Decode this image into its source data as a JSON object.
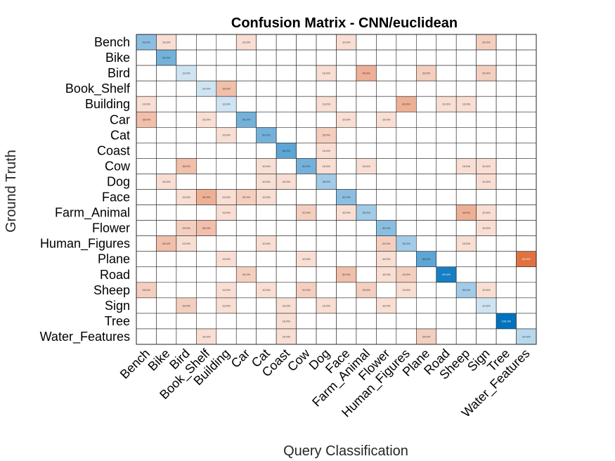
{
  "chart_data": {
    "type": "heatmap",
    "title": "Confusion Matrix - CNN/euclidean",
    "xlabel": "Query Classification",
    "ylabel": "Ground Truth",
    "rows": [
      "Bench",
      "Bike",
      "Bird",
      "Book_Shelf",
      "Building",
      "Car",
      "Cat",
      "Coast",
      "Cow",
      "Dog",
      "Face",
      "Farm_Animal",
      "Flower",
      "Human_Figures",
      "Plane",
      "Road",
      "Sheep",
      "Sign",
      "Tree",
      "Water_Features"
    ],
    "columns": [
      "Bench",
      "Bike",
      "Bird",
      "Book_Shelf",
      "Building",
      "Car",
      "Cat",
      "Coast",
      "Cow",
      "Dog",
      "Face",
      "Farm_Animal",
      "Flower",
      "Human_Figures",
      "Plane",
      "Road",
      "Sheep",
      "Sign",
      "Tree",
      "Water_Features"
    ],
    "grid": true,
    "colors": {
      "diagonal": "#0072BD",
      "off_diagonal": "#D95319",
      "grid_line": "#262626"
    },
    "values": [
      [
        40,
        10,
        0,
        0,
        0,
        10,
        0,
        0,
        0,
        0,
        10,
        0,
        0,
        0,
        0,
        0,
        0,
        20,
        0,
        0
      ],
      [
        0,
        50,
        0,
        0,
        0,
        0,
        0,
        0,
        0,
        0,
        0,
        0,
        0,
        0,
        0,
        0,
        0,
        0,
        0,
        0
      ],
      [
        0,
        0,
        10,
        0,
        0,
        0,
        0,
        0,
        0,
        10,
        0,
        40,
        0,
        0,
        20,
        0,
        0,
        20,
        0,
        0
      ],
      [
        0,
        0,
        0,
        10,
        30,
        0,
        0,
        0,
        0,
        0,
        0,
        0,
        0,
        0,
        0,
        0,
        0,
        0,
        0,
        0
      ],
      [
        10,
        0,
        0,
        0,
        10,
        0,
        0,
        0,
        0,
        10,
        0,
        0,
        0,
        40,
        0,
        10,
        10,
        0,
        0,
        0
      ],
      [
        30,
        0,
        0,
        10,
        0,
        50,
        0,
        0,
        0,
        0,
        10,
        0,
        10,
        0,
        0,
        0,
        0,
        0,
        0,
        0
      ],
      [
        0,
        0,
        0,
        0,
        10,
        0,
        50,
        0,
        0,
        20,
        0,
        0,
        0,
        0,
        0,
        0,
        0,
        0,
        0,
        0
      ],
      [
        0,
        0,
        0,
        0,
        0,
        0,
        0,
        60,
        0,
        10,
        0,
        0,
        0,
        0,
        0,
        0,
        0,
        0,
        0,
        0
      ],
      [
        0,
        0,
        30,
        0,
        0,
        0,
        10,
        0,
        50,
        10,
        0,
        10,
        0,
        0,
        0,
        0,
        10,
        10,
        0,
        0
      ],
      [
        0,
        10,
        0,
        0,
        0,
        0,
        10,
        10,
        0,
        30,
        0,
        0,
        0,
        0,
        0,
        0,
        0,
        10,
        0,
        0
      ],
      [
        0,
        0,
        10,
        40,
        10,
        20,
        10,
        0,
        0,
        0,
        40,
        0,
        0,
        0,
        0,
        0,
        0,
        0,
        0,
        0
      ],
      [
        0,
        0,
        0,
        0,
        10,
        0,
        0,
        0,
        20,
        0,
        10,
        30,
        0,
        0,
        0,
        0,
        40,
        10,
        0,
        0
      ],
      [
        0,
        0,
        20,
        30,
        0,
        0,
        0,
        0,
        0,
        0,
        0,
        0,
        40,
        0,
        0,
        0,
        0,
        10,
        0,
        0
      ],
      [
        0,
        30,
        10,
        0,
        0,
        0,
        10,
        0,
        0,
        0,
        0,
        0,
        20,
        30,
        0,
        0,
        10,
        0,
        0,
        0
      ],
      [
        0,
        0,
        0,
        0,
        10,
        0,
        0,
        0,
        10,
        0,
        0,
        0,
        10,
        0,
        60,
        0,
        0,
        0,
        0,
        80
      ],
      [
        0,
        0,
        0,
        0,
        0,
        20,
        0,
        0,
        0,
        0,
        30,
        0,
        10,
        20,
        0,
        90,
        0,
        0,
        0,
        0
      ],
      [
        20,
        0,
        0,
        0,
        10,
        0,
        10,
        0,
        20,
        0,
        0,
        20,
        0,
        10,
        0,
        0,
        30,
        10,
        0,
        0
      ],
      [
        0,
        0,
        20,
        0,
        10,
        0,
        0,
        10,
        0,
        10,
        0,
        0,
        10,
        0,
        0,
        0,
        0,
        10,
        0,
        0
      ],
      [
        0,
        0,
        0,
        0,
        0,
        0,
        0,
        10,
        0,
        0,
        0,
        0,
        0,
        0,
        0,
        0,
        0,
        0,
        100,
        0
      ],
      [
        0,
        0,
        0,
        10,
        0,
        0,
        0,
        10,
        0,
        0,
        0,
        0,
        0,
        0,
        20,
        0,
        0,
        0,
        0,
        20
      ]
    ]
  }
}
